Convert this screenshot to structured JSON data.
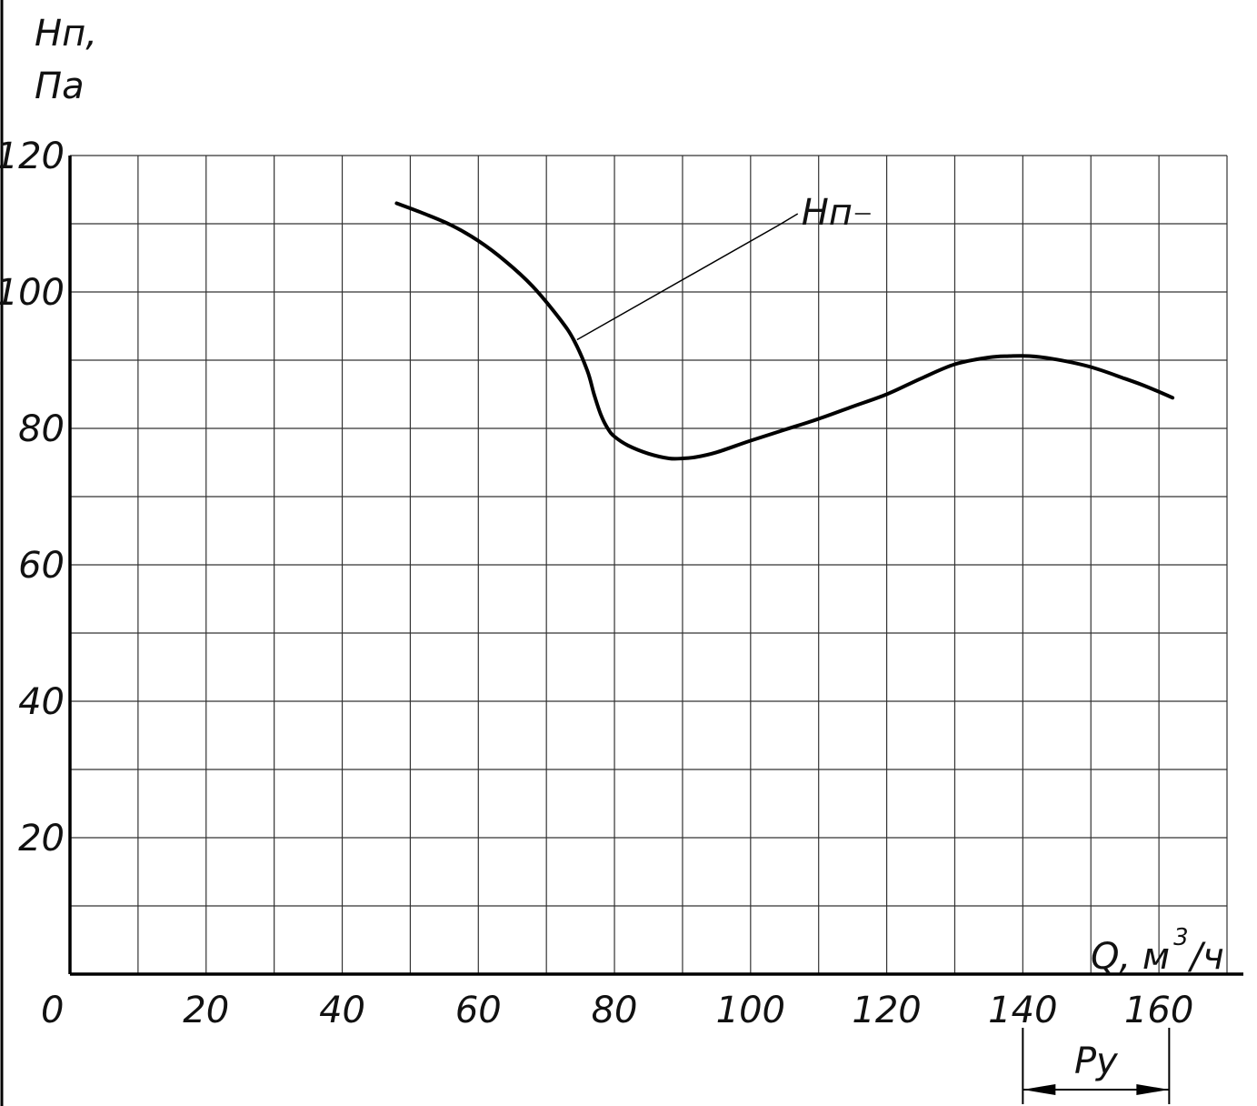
{
  "chart_data": {
    "type": "line",
    "ylabel_line1": "Нп,",
    "ylabel_line2": "Па",
    "xlabel_main": "Q, м",
    "xlabel_sup": "3",
    "xlabel_tail": "/ч",
    "xlim": [
      0,
      170
    ],
    "ylim": [
      0,
      120
    ],
    "x_ticks": [
      0,
      20,
      40,
      60,
      80,
      100,
      120,
      140,
      160
    ],
    "x_tick_labels": [
      "0",
      "20",
      "40",
      "60",
      "80",
      "100",
      "120",
      "140",
      "160"
    ],
    "y_ticks": [
      20,
      40,
      60,
      80,
      100,
      120
    ],
    "y_tick_labels": [
      "20",
      "40",
      "60",
      "80",
      "100",
      "120"
    ],
    "x_grid_step": 10,
    "y_grid_step": 10,
    "grid": true,
    "series": [
      {
        "name": "Нп",
        "color": "#000000",
        "x": [
          48,
          52,
          56,
          60,
          64,
          68,
          72,
          74,
          76,
          77,
          78,
          79,
          80,
          82,
          85,
          88,
          90,
          92,
          95,
          100,
          105,
          110,
          115,
          120,
          125,
          130,
          135,
          138,
          141,
          145,
          150,
          155,
          158,
          162
        ],
        "y": [
          113,
          111.5,
          109.8,
          107.5,
          104.5,
          100.8,
          96,
          93,
          88.5,
          85,
          82,
          80,
          78.8,
          77.5,
          76.3,
          75.6,
          75.6,
          75.8,
          76.5,
          78.2,
          79.8,
          81.4,
          83.2,
          85,
          87.3,
          89.4,
          90.4,
          90.6,
          90.6,
          90.1,
          89,
          87.3,
          86.2,
          84.5
        ]
      }
    ],
    "annotations": [
      {
        "text": "Нп",
        "x": 108,
        "y": 112,
        "points_to_x": 74.5,
        "points_to_y": 93
      }
    ],
    "range_marker": {
      "label": "Ру",
      "x_from": 140,
      "x_to": 161.5
    }
  }
}
